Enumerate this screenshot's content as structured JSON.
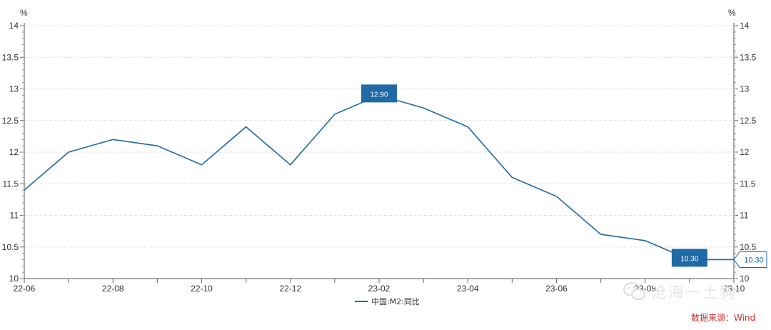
{
  "chart_data": {
    "type": "line",
    "x": [
      "22-06",
      "22-07",
      "22-08",
      "22-09",
      "22-10",
      "22-11",
      "22-12",
      "23-01",
      "23-02",
      "23-03",
      "23-04",
      "23-05",
      "23-06",
      "23-07",
      "23-08",
      "23-09",
      "23-10"
    ],
    "series": [
      {
        "name": "中国:M2:同比",
        "color": "#1f6aa5",
        "values": [
          11.4,
          12.0,
          12.2,
          12.1,
          11.8,
          12.4,
          11.8,
          12.6,
          12.9,
          12.7,
          12.4,
          11.6,
          11.3,
          10.7,
          10.6,
          10.3,
          10.3
        ]
      }
    ],
    "x_tick_labels": [
      "22-06",
      "22-08",
      "22-10",
      "22-12",
      "23-02",
      "23-04",
      "23-06",
      "23-08",
      "23-10"
    ],
    "y_tick_labels": [
      "10",
      "10.5",
      "11",
      "11.5",
      "12",
      "12.5",
      "13",
      "13.5",
      "14"
    ],
    "ylim": [
      10,
      14
    ],
    "y_unit_left": "%",
    "y_unit_right": "%",
    "grid": "horizontal dashed",
    "legend_position": "bottom-center",
    "annotations": [
      {
        "label": "12.90",
        "x": "23-02",
        "value": 12.9,
        "style": "filled"
      },
      {
        "label": "10.30",
        "x": "23-09",
        "value": 10.3,
        "style": "filled"
      },
      {
        "label": "10.30",
        "x": "23-10",
        "value": 10.3,
        "style": "outline"
      }
    ]
  },
  "legend": {
    "label": "中国:M2:同比",
    "color": "#1f6aa5"
  },
  "source_text": "数据来源：Wind",
  "watermark": {
    "text": "沧海一土狗",
    "icon": "wechat-icon"
  }
}
